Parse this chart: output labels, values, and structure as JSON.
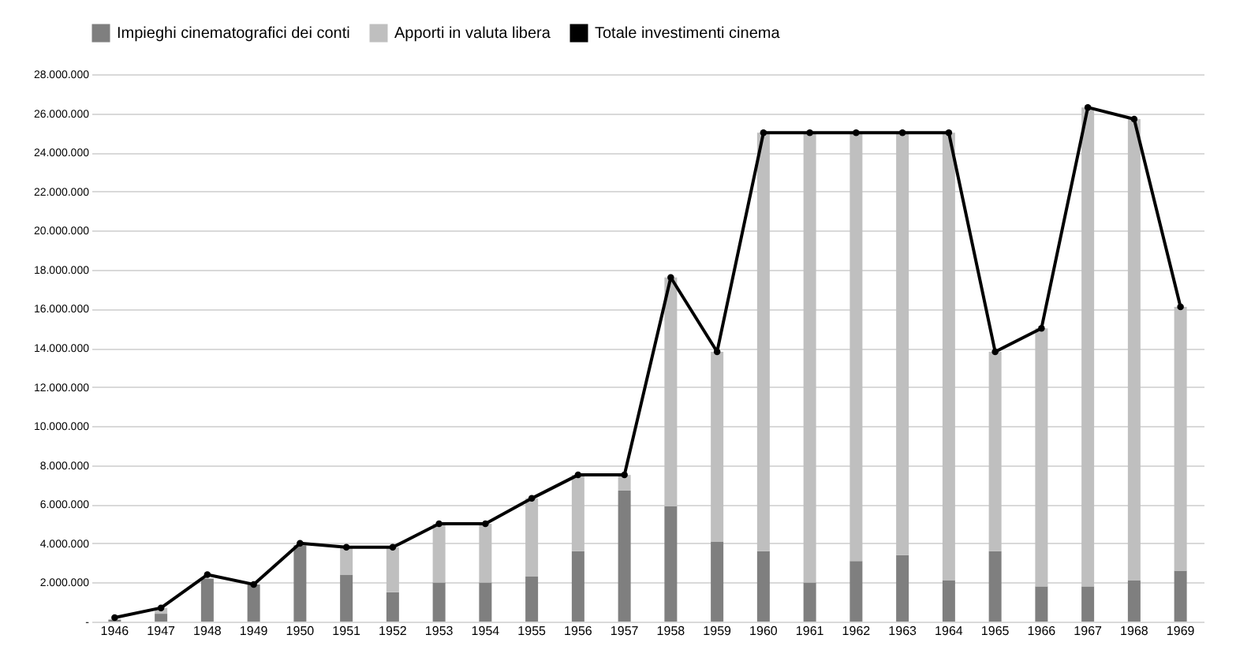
{
  "chart_data": {
    "type": "bar",
    "stacked": true,
    "categories": [
      "1946",
      "1947",
      "1948",
      "1949",
      "1950",
      "1951",
      "1952",
      "1953",
      "1954",
      "1955",
      "1956",
      "1957",
      "1958",
      "1959",
      "1960",
      "1961",
      "1962",
      "1963",
      "1964",
      "1965",
      "1966",
      "1967",
      "1968",
      "1969"
    ],
    "series": [
      {
        "name": "Impieghi cinematografici dei conti",
        "color": "#7f7f7f",
        "values": [
          100000,
          400000,
          2200000,
          1900000,
          3900000,
          2400000,
          1500000,
          2000000,
          2000000,
          2300000,
          3600000,
          6700000,
          5900000,
          4100000,
          3600000,
          2000000,
          3100000,
          3400000,
          2100000,
          3600000,
          1800000,
          1800000,
          2100000,
          2600000
        ]
      },
      {
        "name": "Apporti in valuta libera",
        "color": "#bfbfbf",
        "values": [
          null,
          300000,
          null,
          0,
          null,
          1400000,
          2300000,
          3000000,
          3000000,
          4000000,
          3900000,
          800000,
          11700000,
          9700000,
          21400000,
          23000000,
          21900000,
          21600000,
          22900000,
          10200000,
          13200000,
          24500000,
          23600000,
          13500000
        ]
      },
      {
        "name": "Totale investimenti cinema",
        "color": "#000000",
        "type": "line",
        "marker": "circle",
        "values": [
          200000,
          700000,
          2400000,
          1900000,
          4000000,
          3800000,
          3800000,
          5000000,
          5000000,
          6300000,
          7500000,
          7500000,
          17600000,
          13800000,
          25000000,
          25000000,
          25000000,
          25000000,
          25000000,
          13800000,
          15000000,
          26300000,
          25700000,
          16100000
        ]
      }
    ],
    "ylim": [
      0,
      28000000
    ],
    "yticks": [
      {
        "value": 0,
        "label": "-"
      },
      {
        "value": 2000000,
        "label": "2.000.000"
      },
      {
        "value": 4000000,
        "label": "4.000.000"
      },
      {
        "value": 6000000,
        "label": "6.000.000"
      },
      {
        "value": 8000000,
        "label": "8.000.000"
      },
      {
        "value": 10000000,
        "label": "10.000.000"
      },
      {
        "value": 12000000,
        "label": "12.000.000"
      },
      {
        "value": 14000000,
        "label": "14.000.000"
      },
      {
        "value": 16000000,
        "label": "16.000.000"
      },
      {
        "value": 18000000,
        "label": "18.000.000"
      },
      {
        "value": 20000000,
        "label": "20.000.000"
      },
      {
        "value": 22000000,
        "label": "22.000.000"
      },
      {
        "value": 24000000,
        "label": "24.000.000"
      },
      {
        "value": 26000000,
        "label": "26.000.000"
      },
      {
        "value": 28000000,
        "label": "28.000.000"
      }
    ],
    "grid": "y",
    "legend": "top"
  }
}
